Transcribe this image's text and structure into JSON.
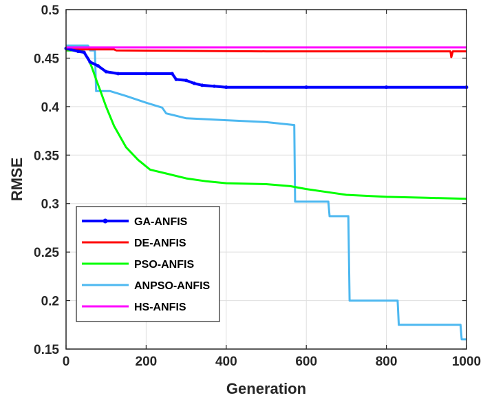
{
  "chart_data": {
    "type": "line",
    "title": "",
    "xlabel": "Generation",
    "ylabel": "RMSE",
    "xlim": [
      0,
      1000
    ],
    "ylim": [
      0.15,
      0.5
    ],
    "xticks": [
      "0",
      "200",
      "400",
      "600",
      "800",
      "1000"
    ],
    "yticks": [
      "0.15",
      "0.2",
      "0.25",
      "0.3",
      "0.35",
      "0.4",
      "0.45",
      "0.5"
    ],
    "grid": true,
    "legend_position": "bottom-left",
    "series": [
      {
        "name": "GA-ANFIS",
        "color": "#0000ff",
        "marker": "dot",
        "points": [
          [
            0,
            0.46
          ],
          [
            30,
            0.457
          ],
          [
            45,
            0.456
          ],
          [
            60,
            0.446
          ],
          [
            80,
            0.442
          ],
          [
            100,
            0.436
          ],
          [
            130,
            0.434
          ],
          [
            200,
            0.434
          ],
          [
            265,
            0.434
          ],
          [
            275,
            0.428
          ],
          [
            300,
            0.427
          ],
          [
            320,
            0.424
          ],
          [
            340,
            0.422
          ],
          [
            370,
            0.421
          ],
          [
            400,
            0.42
          ],
          [
            600,
            0.42
          ],
          [
            800,
            0.42
          ],
          [
            1000,
            0.42
          ]
        ]
      },
      {
        "name": "DE-ANFIS",
        "color": "#ff0000",
        "marker": "none",
        "points": [
          [
            0,
            0.459
          ],
          [
            120,
            0.459
          ],
          [
            125,
            0.458
          ],
          [
            500,
            0.457
          ],
          [
            960,
            0.457
          ],
          [
            962,
            0.451
          ],
          [
            966,
            0.457
          ],
          [
            1000,
            0.457
          ]
        ]
      },
      {
        "name": "PSO-ANFIS",
        "color": "#00ff00",
        "marker": "none",
        "points": [
          [
            0,
            0.458
          ],
          [
            40,
            0.458
          ],
          [
            55,
            0.45
          ],
          [
            65,
            0.44
          ],
          [
            75,
            0.428
          ],
          [
            85,
            0.417
          ],
          [
            100,
            0.4
          ],
          [
            120,
            0.38
          ],
          [
            150,
            0.358
          ],
          [
            180,
            0.345
          ],
          [
            210,
            0.335
          ],
          [
            250,
            0.331
          ],
          [
            300,
            0.326
          ],
          [
            350,
            0.323
          ],
          [
            400,
            0.321
          ],
          [
            500,
            0.32
          ],
          [
            560,
            0.318
          ],
          [
            600,
            0.315
          ],
          [
            650,
            0.312
          ],
          [
            700,
            0.309
          ],
          [
            800,
            0.307
          ],
          [
            900,
            0.306
          ],
          [
            1000,
            0.305
          ]
        ]
      },
      {
        "name": "ANPSO-ANFIS",
        "color": "#4db8f0",
        "marker": "none",
        "points": [
          [
            0,
            0.463
          ],
          [
            55,
            0.463
          ],
          [
            60,
            0.458
          ],
          [
            72,
            0.458
          ],
          [
            75,
            0.416
          ],
          [
            110,
            0.416
          ],
          [
            150,
            0.411
          ],
          [
            200,
            0.404
          ],
          [
            240,
            0.399
          ],
          [
            250,
            0.393
          ],
          [
            280,
            0.39
          ],
          [
            300,
            0.388
          ],
          [
            400,
            0.386
          ],
          [
            500,
            0.384
          ],
          [
            570,
            0.381
          ],
          [
            572,
            0.302
          ],
          [
            655,
            0.302
          ],
          [
            658,
            0.287
          ],
          [
            705,
            0.287
          ],
          [
            708,
            0.2
          ],
          [
            828,
            0.2
          ],
          [
            831,
            0.175
          ],
          [
            985,
            0.175
          ],
          [
            988,
            0.16
          ],
          [
            1000,
            0.16
          ]
        ]
      },
      {
        "name": "HS-ANFIS",
        "color": "#ff00ff",
        "marker": "none",
        "points": [
          [
            0,
            0.461
          ],
          [
            1000,
            0.461
          ]
        ]
      }
    ]
  }
}
